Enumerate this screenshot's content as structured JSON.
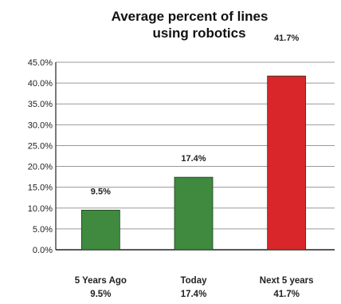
{
  "chart_data": {
    "type": "bar",
    "title_lines": [
      "Average percent of lines",
      "using robotics"
    ],
    "categories": [
      "5 Years Ago",
      "Today",
      "Next 5 years"
    ],
    "category_values": [
      "9.5%",
      "17.4%",
      "41.7%"
    ],
    "values": [
      9.5,
      17.4,
      41.7
    ],
    "data_labels": [
      "9.5%",
      "17.4%",
      "41.7%"
    ],
    "ylim": [
      0,
      45
    ],
    "y_ticks": [
      0,
      5,
      10,
      15,
      20,
      25,
      30,
      35,
      40,
      45
    ],
    "y_tick_labels": [
      "0.0%",
      "5.0%",
      "10.0%",
      "15.0%",
      "20.0%",
      "25.0%",
      "30.0%",
      "35.0%",
      "40.0%",
      "45.0%"
    ],
    "grid": true,
    "bar_colors": [
      "#3f8a3f",
      "#3f8a3f",
      "#d9262a"
    ],
    "xlabel": "",
    "ylabel": ""
  }
}
